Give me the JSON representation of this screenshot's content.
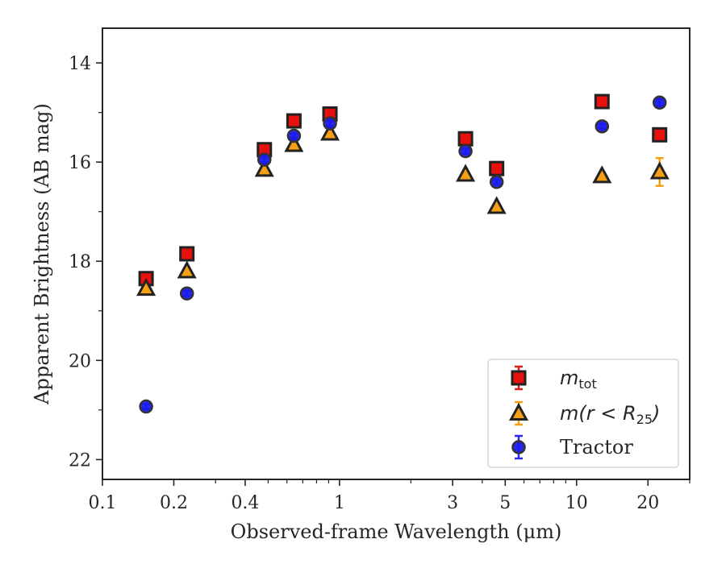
{
  "chart_data": {
    "type": "scatter",
    "xlabel": "Observed-frame Wavelength (μm)",
    "ylabel": "Apparent Brightness (AB mag)",
    "x_scale": "log",
    "xlim": [
      0.1,
      30
    ],
    "ylim": [
      22.4,
      13.3
    ],
    "y_inverted": true,
    "x_ticks": [
      {
        "value": 0.1,
        "label": "0.1"
      },
      {
        "value": 0.2,
        "label": "0.2"
      },
      {
        "value": 0.4,
        "label": "0.4"
      },
      {
        "value": 1,
        "label": "1"
      },
      {
        "value": 3,
        "label": "3"
      },
      {
        "value": 5,
        "label": "5"
      },
      {
        "value": 10,
        "label": "10"
      },
      {
        "value": 20,
        "label": "20"
      }
    ],
    "x_minor_ticks": [
      0.3,
      0.5,
      0.6,
      0.7,
      0.8,
      0.9,
      2,
      4,
      6,
      7,
      8,
      9,
      30
    ],
    "y_ticks": [
      {
        "value": 14,
        "label": "14"
      },
      {
        "value": 16,
        "label": "16"
      },
      {
        "value": 18,
        "label": "18"
      },
      {
        "value": 20,
        "label": "20"
      },
      {
        "value": 22,
        "label": "22"
      }
    ],
    "y_minor_ticks": [
      15,
      17,
      19,
      21
    ],
    "grid": false,
    "legend_position": "bottom-right",
    "series": [
      {
        "name": "m_tot",
        "legend_main": "m",
        "legend_sub": "tot",
        "marker": "square",
        "color": "#e8100c",
        "edge_color": "#222222",
        "error_color": "#d62020",
        "points": [
          {
            "x": 0.1528,
            "y": 18.35,
            "err": 0.05
          },
          {
            "x": 0.2271,
            "y": 17.85,
            "err": 0.05
          },
          {
            "x": 0.482,
            "y": 15.75,
            "err": 0.05
          },
          {
            "x": 0.6423,
            "y": 15.17,
            "err": 0.05
          },
          {
            "x": 0.9114,
            "y": 15.03,
            "err": 0.05
          },
          {
            "x": 3.4,
            "y": 15.53,
            "err": 0.05
          },
          {
            "x": 4.6,
            "y": 16.13,
            "err": 0.05
          },
          {
            "x": 12.8,
            "y": 14.78,
            "err": 0.05
          },
          {
            "x": 22.4,
            "y": 15.45,
            "err": 0.05
          }
        ]
      },
      {
        "name": "m(r<R25)",
        "legend_main": "m(r < R",
        "legend_sub": "25",
        "legend_tail": ")",
        "marker": "triangle",
        "color": "#f5a014",
        "edge_color": "#222222",
        "error_color": "#f5a014",
        "points": [
          {
            "x": 0.1528,
            "y": 18.55,
            "err": 0.05
          },
          {
            "x": 0.2271,
            "y": 18.2,
            "err": 0.05
          },
          {
            "x": 0.482,
            "y": 16.15,
            "err": 0.05
          },
          {
            "x": 0.6423,
            "y": 15.65,
            "err": 0.05
          },
          {
            "x": 0.9114,
            "y": 15.42,
            "err": 0.05
          },
          {
            "x": 3.4,
            "y": 16.25,
            "err": 0.05
          },
          {
            "x": 4.6,
            "y": 16.9,
            "err": 0.05
          },
          {
            "x": 12.8,
            "y": 16.28,
            "err": 0.05
          },
          {
            "x": 22.4,
            "y": 16.2,
            "err": 0.28
          }
        ]
      },
      {
        "name": "Tractor",
        "legend_main": "Tractor",
        "marker": "circle",
        "color": "#1a1aee",
        "edge_color": "#333333",
        "error_color": "#2a2af0",
        "points": [
          {
            "x": 0.1528,
            "y": 20.93,
            "err": 0.05
          },
          {
            "x": 0.2271,
            "y": 18.65,
            "err": 0.05
          },
          {
            "x": 0.482,
            "y": 15.95,
            "err": 0.05
          },
          {
            "x": 0.6423,
            "y": 15.47,
            "err": 0.05
          },
          {
            "x": 0.9114,
            "y": 15.22,
            "err": 0.05
          },
          {
            "x": 3.4,
            "y": 15.78,
            "err": 0.05
          },
          {
            "x": 4.6,
            "y": 16.4,
            "err": 0.05
          },
          {
            "x": 12.8,
            "y": 15.28,
            "err": 0.05
          },
          {
            "x": 22.4,
            "y": 14.8,
            "err": 0.07
          }
        ]
      }
    ]
  }
}
